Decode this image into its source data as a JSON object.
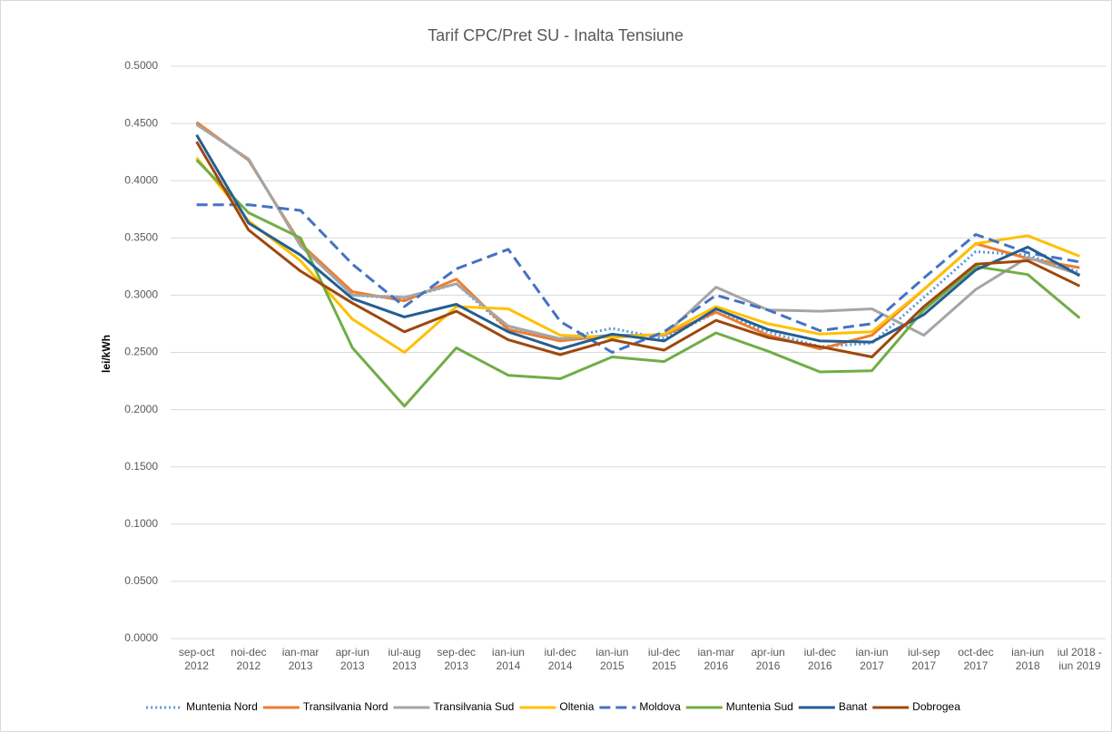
{
  "chart_data": {
    "type": "line",
    "title": "Tarif CPC/Pret SU - Inalta Tensiune",
    "y_label": "lei/kWh",
    "categories": [
      "sep-oct\n2012",
      "noi-dec\n2012",
      "ian-mar\n2013",
      "apr-iun\n2013",
      "iul-aug\n2013",
      "sep-dec\n2013",
      "ian-iun\n2014",
      "iul-dec\n2014",
      "ian-iun\n2015",
      "iul-dec\n2015",
      "ian-mar\n2016",
      "apr-iun\n2016",
      "iul-dec\n2016",
      "ian-iun\n2017",
      "iul-sep\n2017",
      "oct-dec\n2017",
      "ian-iun\n2018",
      "iul 2018 -\niun 2019"
    ],
    "ylim": [
      0,
      0.5
    ],
    "yticks": [
      {
        "value": 0,
        "label": "0.0000"
      },
      {
        "value": 0.05,
        "label": "0.0500"
      },
      {
        "value": 0.1,
        "label": "0.1000"
      },
      {
        "value": 0.15,
        "label": "0.1500"
      },
      {
        "value": 0.2,
        "label": "0.2000"
      },
      {
        "value": 0.25,
        "label": "0.2500"
      },
      {
        "value": 0.3,
        "label": "0.3000"
      },
      {
        "value": 0.35,
        "label": "0.3500"
      },
      {
        "value": 0.4,
        "label": "0.4000"
      },
      {
        "value": 0.45,
        "label": "0.4500"
      },
      {
        "value": 0.5,
        "label": "0.5000"
      }
    ],
    "grid": true,
    "legend": "bottom",
    "series": [
      {
        "name": "Muntenia Nord",
        "color": "#5b9bd5",
        "dash": "dotted",
        "values": [
          0.45,
          0.418,
          0.345,
          0.3,
          0.297,
          0.31,
          0.27,
          0.262,
          0.271,
          0.262,
          0.285,
          0.268,
          0.255,
          0.258,
          0.298,
          0.338,
          0.335,
          0.32
        ]
      },
      {
        "name": "Transilvania Nord",
        "color": "#ed7d31",
        "dash": "solid",
        "values": [
          0.451,
          0.418,
          0.345,
          0.303,
          0.295,
          0.314,
          0.27,
          0.26,
          0.265,
          0.265,
          0.285,
          0.265,
          0.253,
          0.265,
          0.305,
          0.345,
          0.332,
          0.324
        ]
      },
      {
        "name": "Transilvania Sud",
        "color": "#a5a5a5",
        "dash": "solid",
        "values": [
          0.449,
          0.419,
          0.343,
          0.3,
          0.298,
          0.31,
          0.273,
          0.262,
          0.265,
          0.265,
          0.307,
          0.287,
          0.286,
          0.288,
          0.265,
          0.305,
          0.333,
          0.318
        ]
      },
      {
        "name": "Oltenia",
        "color": "#ffc000",
        "dash": "solid",
        "values": [
          0.42,
          0.365,
          0.33,
          0.279,
          0.25,
          0.29,
          0.288,
          0.265,
          0.263,
          0.266,
          0.29,
          0.275,
          0.266,
          0.268,
          0.305,
          0.345,
          0.352,
          0.334
        ]
      },
      {
        "name": "Moldova",
        "color": "#4472c4",
        "dash": "dashed",
        "values": [
          0.379,
          0.379,
          0.374,
          0.327,
          0.29,
          0.323,
          0.34,
          0.277,
          0.25,
          0.268,
          0.3,
          0.287,
          0.269,
          0.275,
          0.315,
          0.353,
          0.337,
          0.329
        ]
      },
      {
        "name": "Muntenia Sud",
        "color": "#70ad47",
        "dash": "solid",
        "values": [
          0.418,
          0.372,
          0.35,
          0.254,
          0.203,
          0.254,
          0.23,
          0.227,
          0.246,
          0.242,
          0.267,
          0.251,
          0.233,
          0.234,
          0.287,
          0.325,
          0.318,
          0.28
        ]
      },
      {
        "name": "Banat",
        "color": "#255e91",
        "dash": "solid",
        "values": [
          0.44,
          0.363,
          0.335,
          0.297,
          0.281,
          0.292,
          0.268,
          0.253,
          0.266,
          0.26,
          0.288,
          0.27,
          0.26,
          0.259,
          0.283,
          0.322,
          0.342,
          0.317
        ]
      },
      {
        "name": "Dobrogea",
        "color": "#9e480e",
        "dash": "solid",
        "values": [
          0.434,
          0.357,
          0.321,
          0.293,
          0.268,
          0.286,
          0.261,
          0.248,
          0.261,
          0.252,
          0.278,
          0.263,
          0.255,
          0.246,
          0.29,
          0.327,
          0.33,
          0.308
        ]
      }
    ]
  }
}
